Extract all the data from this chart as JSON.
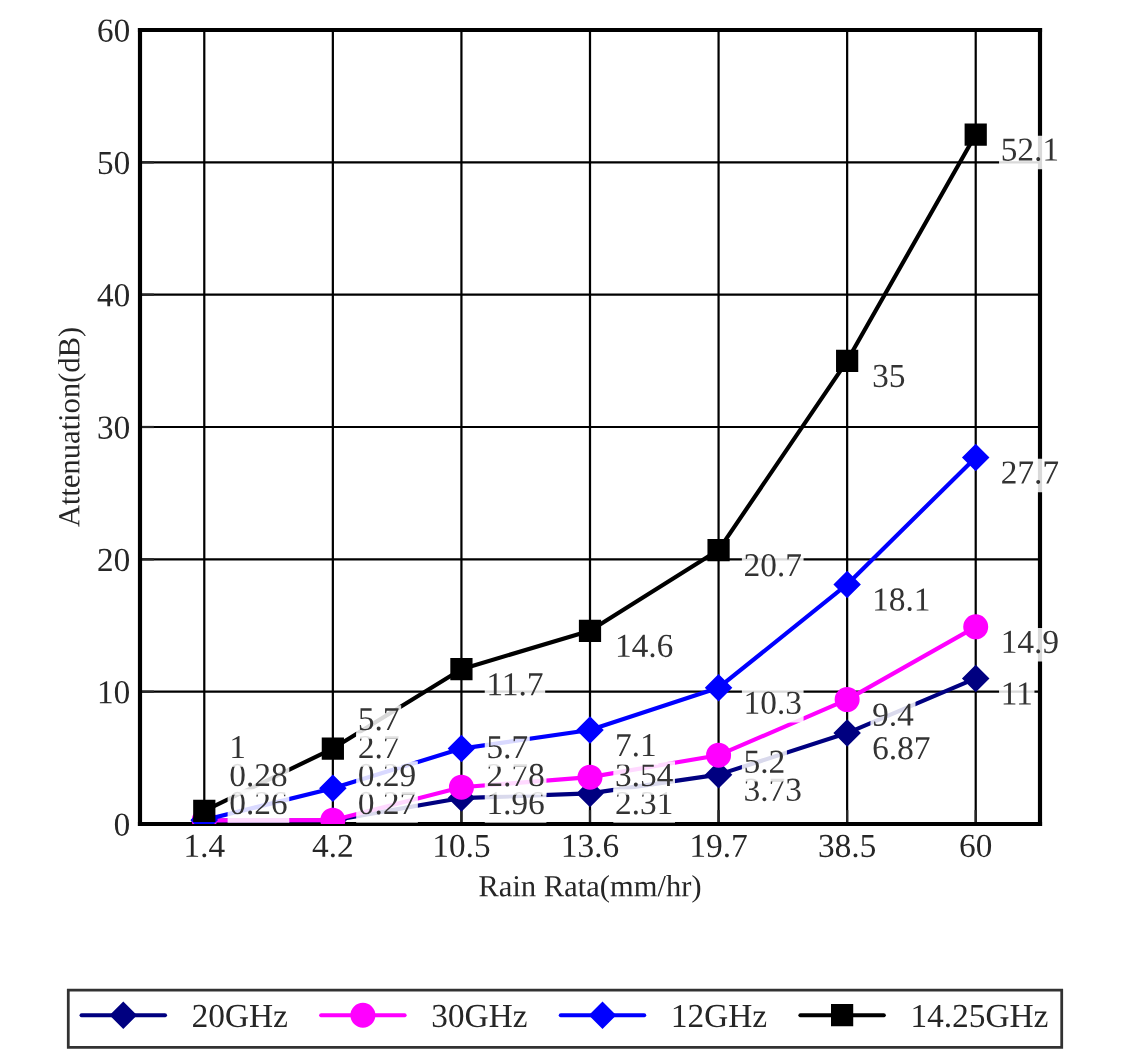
{
  "chart_data": {
    "type": "line",
    "xlabel": "Rain Rata(mm/hr)",
    "ylabel": "Attenuation(dB)",
    "categories": [
      "1.4",
      "4.2",
      "10.5",
      "13.6",
      "19.7",
      "38.5",
      "60"
    ],
    "ylim": [
      0,
      60
    ],
    "yticks": [
      0,
      10,
      20,
      30,
      40,
      50,
      60
    ],
    "grid": true,
    "legend": "bottom",
    "series": [
      {
        "name": "20GHz",
        "color": "#000080",
        "marker": "diamond",
        "values": [
          0.26,
          0.27,
          1.96,
          2.31,
          3.73,
          6.87,
          11
        ],
        "value_labels": [
          "0.26",
          "0.27",
          "1.96",
          "2.31",
          "3.73",
          "6.87",
          "11"
        ]
      },
      {
        "name": "30GHz",
        "color": "#ff00ff",
        "marker": "circle",
        "values": [
          0.28,
          0.29,
          2.78,
          3.54,
          5.2,
          9.4,
          14.9
        ],
        "value_labels": [
          "0.28",
          "0.29",
          "2.78",
          "3.54",
          "5.2",
          "9.4",
          "14.9"
        ]
      },
      {
        "name": "12GHz",
        "color": "#0000ff",
        "marker": "diamond",
        "values": [
          0.3,
          2.7,
          5.7,
          7.1,
          10.3,
          18.1,
          27.7
        ],
        "value_labels": [
          null,
          "2.7",
          "5.7",
          "7.1",
          "10.3",
          "18.1",
          "27.7"
        ]
      },
      {
        "name": "14.25GHz",
        "color": "#000000",
        "marker": "square",
        "values": [
          1,
          5.7,
          11.7,
          14.6,
          20.7,
          35,
          52.1
        ],
        "value_labels": [
          "1",
          "5.7",
          "11.7",
          "14.6",
          "20.7",
          "35",
          "52.1"
        ]
      }
    ]
  }
}
